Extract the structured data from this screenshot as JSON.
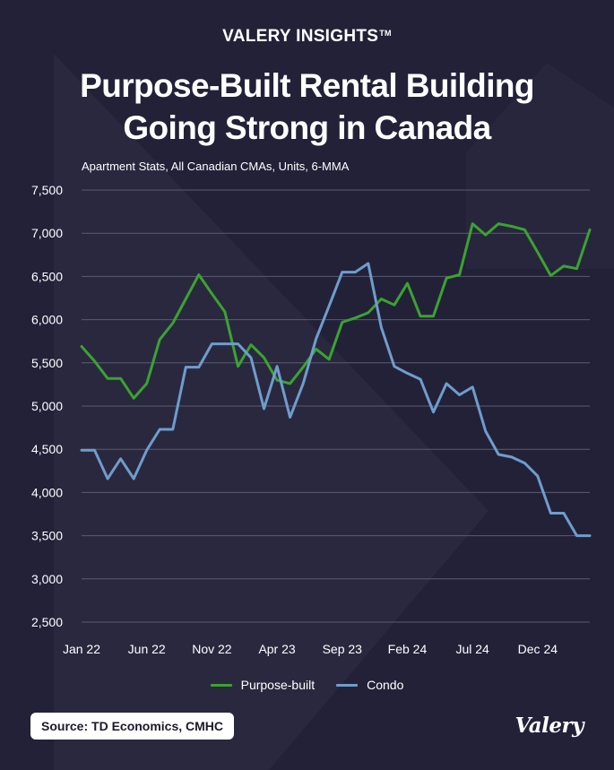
{
  "brand": "VALERY INSIGHTS",
  "brand_tm": "TM",
  "title_lines": [
    "Purpose-Built Rental Building",
    "Going Strong in Canada"
  ],
  "subtitle": "Apartment Stats, All Canadian CMAs, Units, 6-MMA",
  "source": "Source: TD Economics, CMHC",
  "logo": "Valery",
  "colors": {
    "background": "#232138",
    "purpose_built": "#3aa330",
    "condo": "#6e9dcc",
    "grid": "#5b5a72"
  },
  "chart_data": {
    "type": "line",
    "title": "",
    "xlabel": "",
    "ylabel": "",
    "ylim": [
      2500,
      7500
    ],
    "yticks": [
      2500,
      3000,
      3500,
      4000,
      4500,
      5000,
      5500,
      6000,
      6500,
      7000,
      7500
    ],
    "ytick_labels": [
      "2,500",
      "3,000",
      "3,500",
      "4,000",
      "4,500",
      "5,000",
      "5,500",
      "6,000",
      "6,500",
      "7,000",
      "7,500"
    ],
    "x_tick_labels": [
      "Jan 22",
      "Jun 22",
      "Nov 22",
      "Apr 23",
      "Sep 23",
      "Feb 24",
      "Jul 24",
      "Dec 24"
    ],
    "x": [
      "Jan 22",
      "Feb 22",
      "Mar 22",
      "Apr 22",
      "May 22",
      "Jun 22",
      "Jul 22",
      "Aug 22",
      "Sep 22",
      "Oct 22",
      "Nov 22",
      "Dec 22",
      "Jan 23",
      "Feb 23",
      "Mar 23",
      "Apr 23",
      "May 23",
      "Jun 23",
      "Jul 23",
      "Aug 23",
      "Sep 23",
      "Oct 23",
      "Nov 23",
      "Dec 23",
      "Jan 24",
      "Feb 24",
      "Mar 24",
      "Apr 24",
      "May 24",
      "Jun 24",
      "Jul 24",
      "Aug 24",
      "Sep 24",
      "Oct 24",
      "Nov 24",
      "Dec 24",
      "Jan 25",
      "Feb 25",
      "Mar 25",
      "Apr 25"
    ],
    "grid": true,
    "legend_position": "bottom",
    "series": [
      {
        "name": "Purpose-built",
        "values": [
          5690,
          5520,
          5320,
          5320,
          5090,
          5260,
          5770,
          5960,
          6240,
          6520,
          6300,
          6090,
          5460,
          5710,
          5560,
          5300,
          5260,
          5450,
          5660,
          5540,
          5970,
          6020,
          6080,
          6240,
          6170,
          6420,
          6040,
          6040,
          6480,
          6520,
          7110,
          6980,
          7110,
          7080,
          7040,
          6780,
          6510,
          6620,
          6590,
          7040
        ]
      },
      {
        "name": "Condo",
        "values": [
          4490,
          4490,
          4160,
          4390,
          4160,
          4490,
          4730,
          4730,
          5450,
          5450,
          5720,
          5720,
          5720,
          5560,
          4970,
          5460,
          4870,
          5260,
          5780,
          6160,
          6550,
          6550,
          6650,
          5910,
          5460,
          5380,
          5310,
          4930,
          5260,
          5130,
          5220,
          4710,
          4440,
          4410,
          4340,
          4190,
          3760,
          3760,
          3500,
          3500
        ]
      }
    ]
  }
}
